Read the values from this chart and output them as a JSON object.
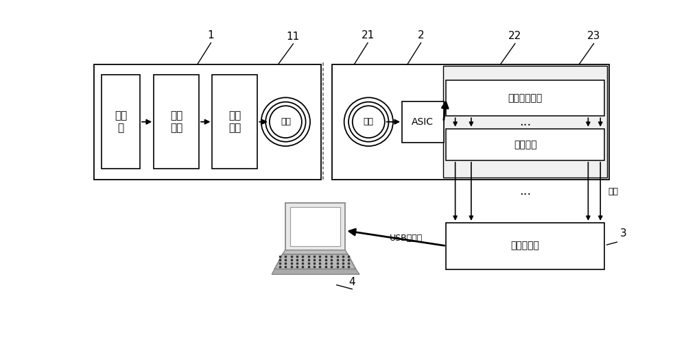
{
  "bg": "#ffffff",
  "mic_text": "麦克\n风",
  "audio_text": "声音\n处理",
  "encode_text": "编码\n发射",
  "coil_text": "线圈",
  "asic_text": "ASIC",
  "electrode_text": "电极模拟电路",
  "interface_text": "接口电路",
  "collector_text": "数据采集器",
  "usb_text": "USB数据线",
  "guide_text": "导线",
  "dots": "...",
  "lbl1": "1",
  "lbl2": "2",
  "lbl3": "3",
  "lbl4": "4",
  "lbl11": "11",
  "lbl21": "21",
  "lbl22": "22",
  "lbl23": "23"
}
